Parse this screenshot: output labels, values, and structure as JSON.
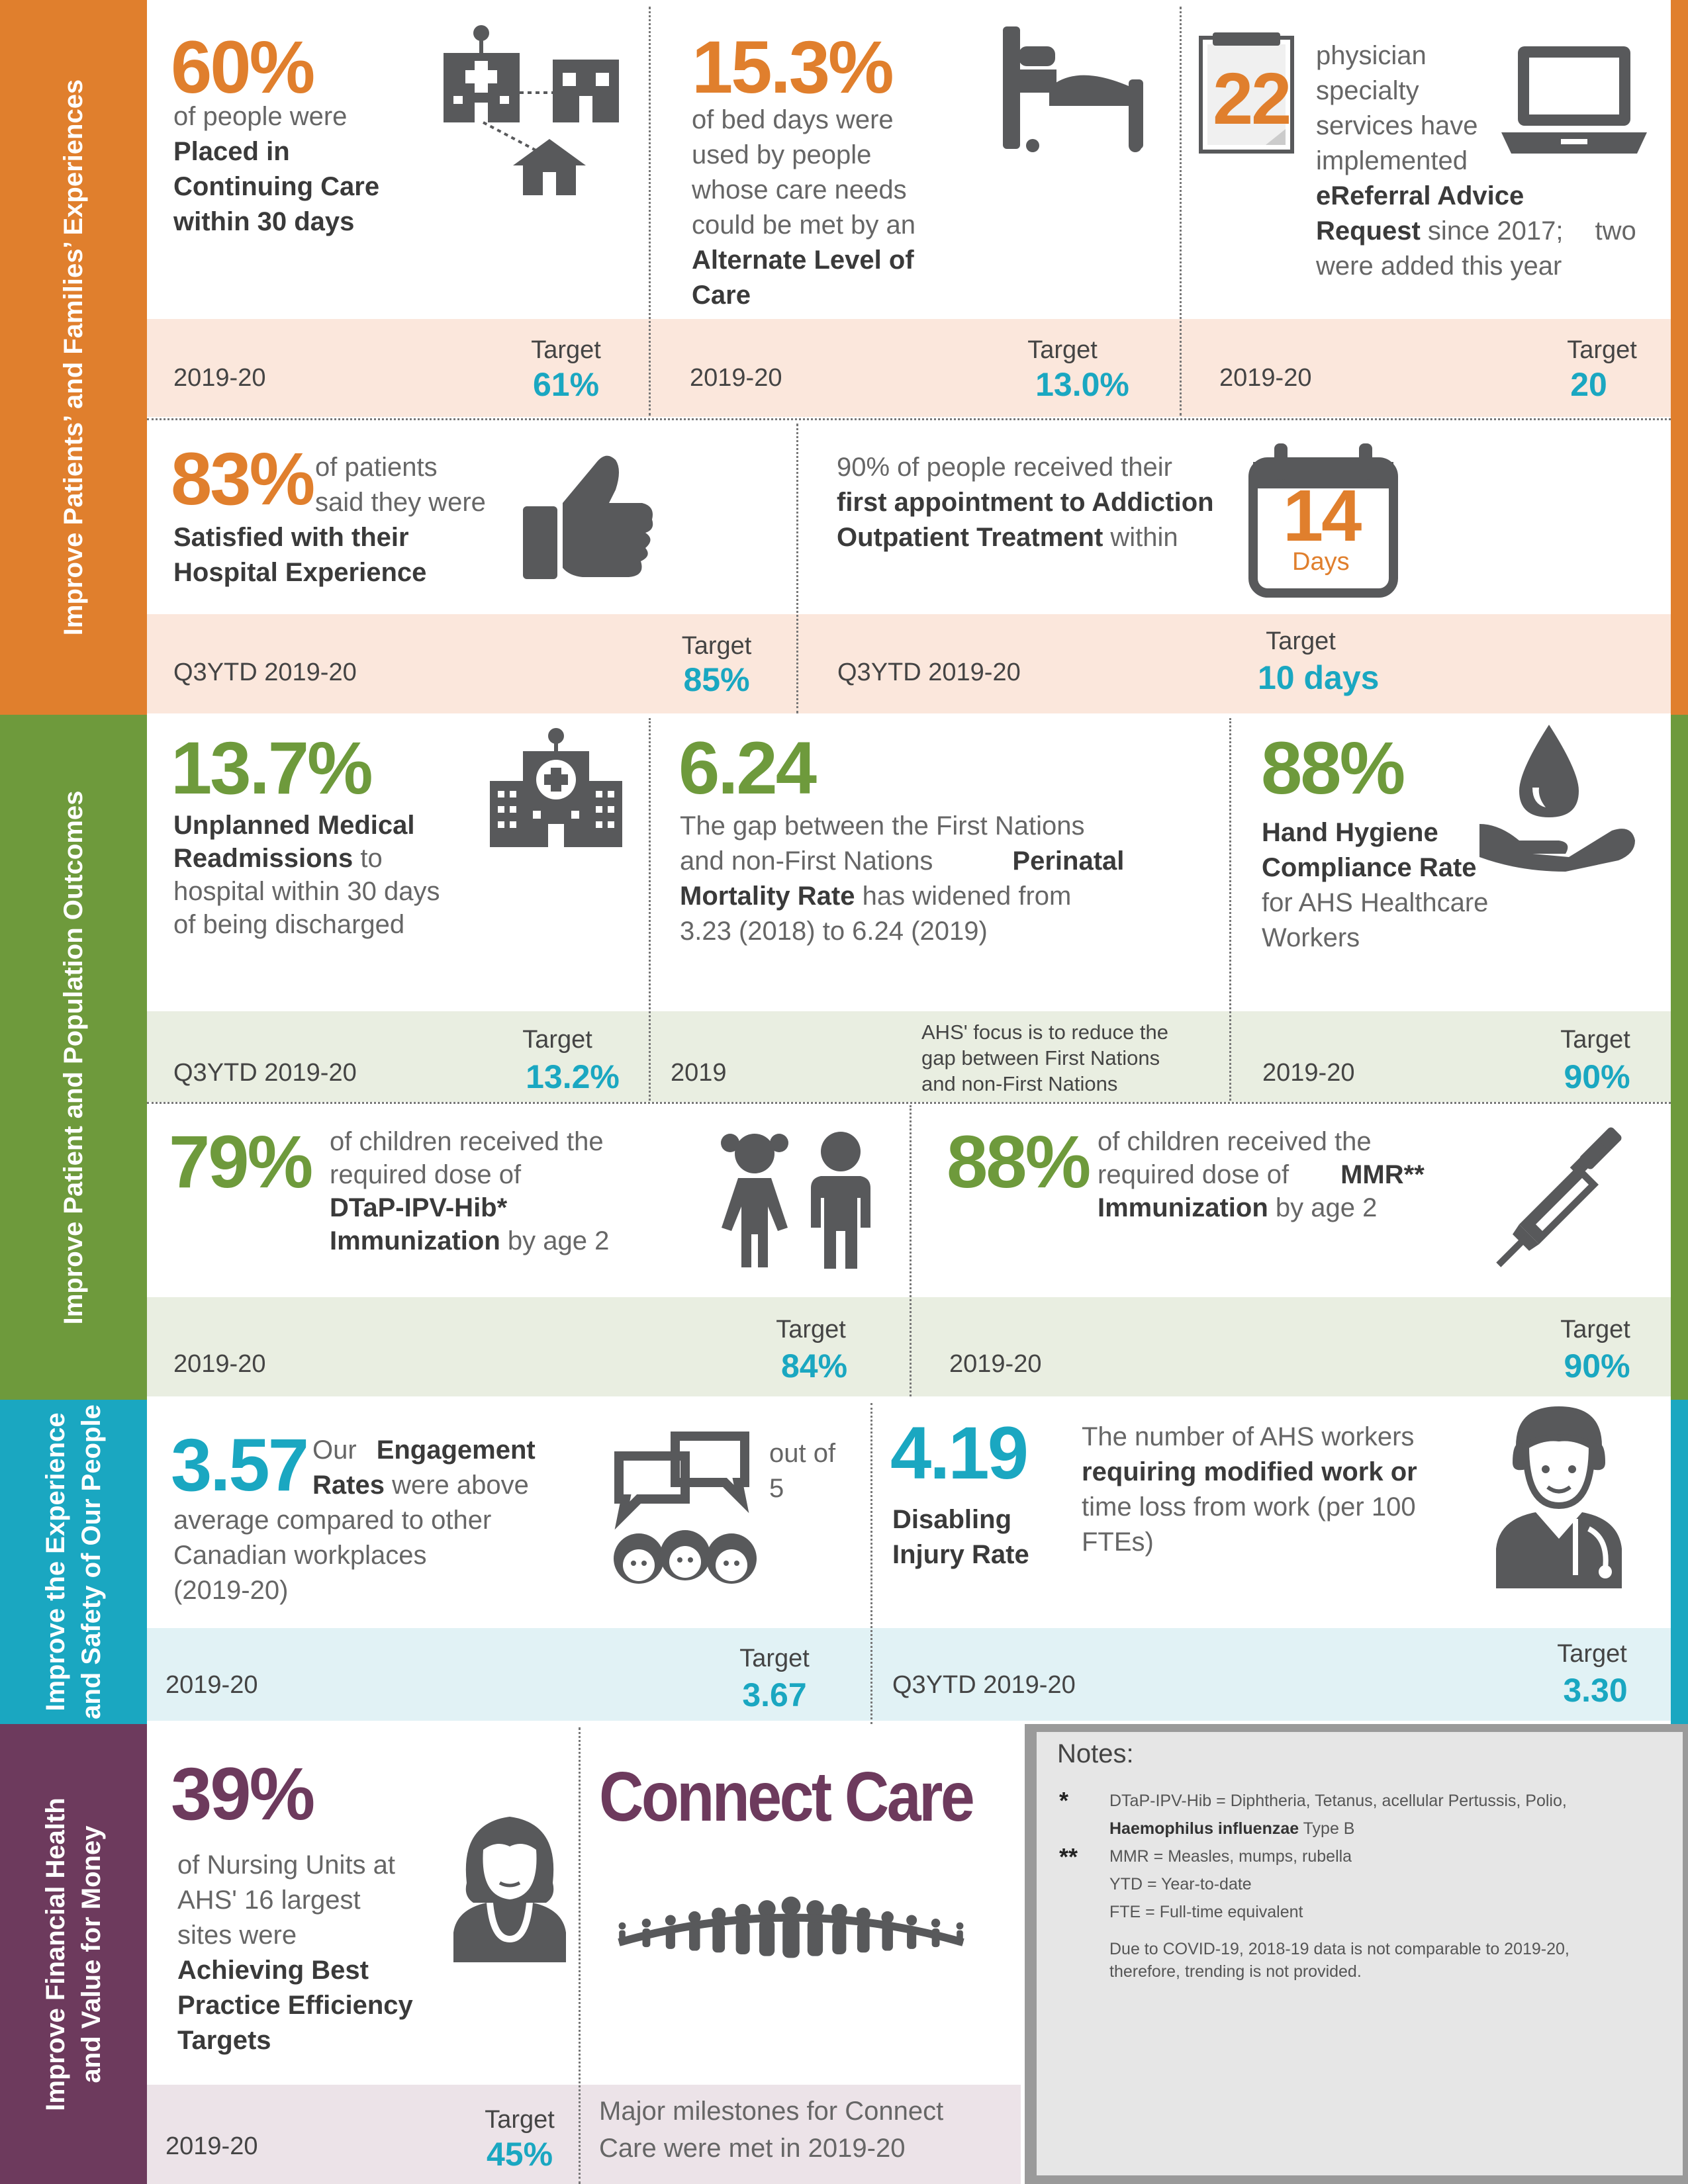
{
  "colors": {
    "orange": "#e07f2d",
    "green": "#6e9a3c",
    "teal": "#1aa7c1",
    "purple": "#6d3a5d",
    "icon": "#58595b"
  },
  "bands": {
    "patients": "Improve Patients’ and Families’ Experiences",
    "outcomes": "Improve Patient and Population Outcomes",
    "people_l1": "Improve the Experience",
    "people_l2": "and Safety of Our People",
    "finance_l1": "Improve Financial Health",
    "finance_l2": "and Value for Money"
  },
  "continuing_care": {
    "value": "60%",
    "l1": "of people were",
    "l2": "Placed in",
    "l3": "Continuing Care",
    "l4": "within 30 days",
    "period": "2019-20",
    "target_label": "Target",
    "target": "61%",
    "icon": "hospital-network-icon"
  },
  "alc": {
    "value": "15.3%",
    "l1": "of bed days were",
    "l2": "used by people",
    "l3": "whose care needs",
    "l4": "could be met by an",
    "l5": "Alternate Level of",
    "l6": "Care",
    "period": "2019-20",
    "target_label": "Target",
    "target": "13.0%",
    "icon": "hospital-bed-icon"
  },
  "ereferral": {
    "value": "22",
    "l1": "physician",
    "l2": "specialty",
    "l3": "services have",
    "l4": "implemented",
    "l5": "eReferral Advice",
    "l6a": "Request",
    "l6b": " since 2017;",
    "l6c": "two",
    "l7": "were added this year",
    "period": "2019-20",
    "target_label": "Target",
    "target": "20",
    "icon": "laptop-icon"
  },
  "hospital_exp": {
    "value": "83%",
    "l1": "of patients",
    "l2": "said they were",
    "l3": "Satisfied with their",
    "l4": "Hospital Experience",
    "period": "Q3YTD 2019-20",
    "target_label": "Target",
    "target": "85%",
    "icon": "thumbs-up-icon"
  },
  "addiction": {
    "l1": "90% of people received their",
    "l2": "first appointment to Addiction",
    "l3a": "Outpatient Treatment",
    "l3b": " within",
    "cal_num": "14",
    "cal_unit": "Days",
    "period": "Q3YTD 2019-20",
    "target_label": "Target",
    "target": "10 days",
    "icon": "calendar-icon"
  },
  "readmission": {
    "value": "13.7%",
    "l1": "Unplanned Medical",
    "l2a": "Readmissions",
    "l2b": " to",
    "l3": "hospital within 30 days",
    "l4": "of being discharged",
    "period": "Q3YTD 2019-20",
    "target_label": "Target",
    "target": "13.2%",
    "icon": "hospital-icon"
  },
  "perinatal": {
    "value": "6.24",
    "l1": "The gap between the First Nations",
    "l2a": "and non-First Nations",
    "l2b": "Perinatal",
    "l3a": "Mortality Rate",
    "l3b": " has widened from",
    "l4": "3.23 (2018) to 6.24 (2019)",
    "period": "2019",
    "note1": "AHS' focus is to reduce the",
    "note2": "gap between First Nations",
    "note3": "and non-First Nations"
  },
  "hand_hygiene": {
    "value": "88%",
    "l1": "Hand Hygiene",
    "l2": "Compliance Rate",
    "l3": "for   AHS Healthcare",
    "l4": "Workers",
    "period": "2019-20",
    "target_label": "Target",
    "target": "90%",
    "icon": "hand-water-drop-icon"
  },
  "dtap": {
    "value": "79%",
    "l1": "of children received the",
    "l2": "required dose of",
    "l3": "DTaP-IPV-Hib*",
    "l4a": "Immunization",
    "l4b": " by age 2",
    "period": "2019-20",
    "target_label": "Target",
    "target": "84%",
    "icon": "children-icon"
  },
  "mmr": {
    "value": "88%",
    "l1": "of children received the",
    "l2a": "required dose of",
    "l2b": "MMR**",
    "l3a": "Immunization",
    "l3b": " by age 2",
    "period": "2019-20",
    "target_label": "Target",
    "target": "90%",
    "icon": "syringe-icon"
  },
  "engagement": {
    "value": "3.57",
    "l1a": "Our",
    "l1b": "Engagement",
    "l2a": "Rates",
    "l2b": " were above",
    "l3": "average compared to other",
    "l4": "Canadian workplaces",
    "l5": "(2019-20)",
    "outof1": "out of",
    "outof2": "5",
    "period": "2019-20",
    "target_label": "Target",
    "target": "3.67",
    "icon": "chat-people-icon"
  },
  "injury": {
    "value": "4.19",
    "l1": "Disabling",
    "l2": "Injury Rate",
    "r1": "The number of AHS workers",
    "r2": "requiring modified work or",
    "r3": "time loss from work (per 100",
    "r4": "FTEs)",
    "period": "Q3YTD 2019-20",
    "target_label": "Target",
    "target": "3.30",
    "icon": "doctor-icon"
  },
  "nursing": {
    "value": "39%",
    "l1": "of Nursing Units at",
    "l2": "AHS' 16 largest",
    "l3": "sites were",
    "l4": "Achieving Best",
    "l5": "Practice Efficiency",
    "l6": "Targets",
    "period": "2019-20",
    "target_label": "Target",
    "target": "45%",
    "icon": "nurse-icon"
  },
  "connect_care": {
    "title": "Connect Care",
    "l1": "Major milestones for Connect",
    "l2": "Care were met in 2019-20",
    "icon": "linked-people-icon"
  },
  "notes": {
    "title": "Notes:",
    "s1": "*",
    "n1": "DTaP-IPV-Hib = Diphtheria, Tetanus, acellular Pertussis, Polio,",
    "n2a": "Haemophilus influenzae",
    "n2b": "  Type B",
    "s2": "**",
    "n3": "MMR = Measles, mumps, rubella",
    "n4": "YTD = Year-to-date",
    "n5": "FTE = Full-time equivalent",
    "n6": "Due to COVID-19, 2018-19 data is not comparable to 2019-20,",
    "n7": "therefore, trending is not provided."
  }
}
